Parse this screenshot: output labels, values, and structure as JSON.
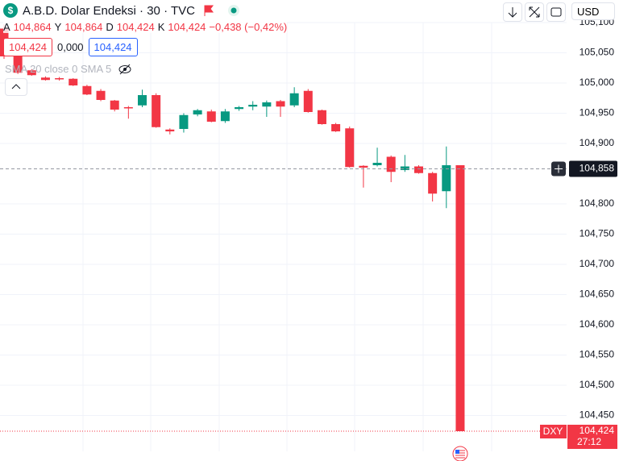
{
  "header": {
    "icon": "$",
    "title": "A.B.D. Dolar Endeksi · 30 · TVC",
    "ohlc": [
      {
        "key": "A",
        "value": "104,864"
      },
      {
        "key": "Y",
        "value": "104,864"
      },
      {
        "key": "D",
        "value": "104,424"
      },
      {
        "key": "K",
        "value": "104,424"
      }
    ],
    "change": "−0,438 (−0,42%)",
    "price_boxes": [
      "104,424",
      "0,000",
      "104,424"
    ],
    "indicator": "SMA 20 close 0 SMA 5"
  },
  "toolbar": {
    "currency": "USD"
  },
  "chart_data": {
    "type": "candlestick",
    "open": [
      105.09,
      105.044,
      105.021,
      105.009,
      105.008,
      105.007,
      104.995,
      104.987,
      104.971,
      104.96,
      104.963,
      104.98,
      104.923,
      104.924,
      104.948,
      104.953,
      104.937,
      104.957,
      104.961,
      104.961,
      104.97,
      104.963,
      104.987,
      104.955,
      104.932,
      104.925,
      104.863,
      104.864,
      104.878,
      104.856,
      104.862,
      104.851,
      104.821,
      104.864
    ],
    "high": [
      105.097,
      105.046,
      105.023,
      105.011,
      105.01,
      105.008,
      104.997,
      104.99,
      104.972,
      104.962,
      104.989,
      104.983,
      104.925,
      104.95,
      104.957,
      104.956,
      104.957,
      104.962,
      104.97,
      104.971,
      104.972,
      104.993,
      104.99,
      104.956,
      104.934,
      104.928,
      104.864,
      104.893,
      104.88,
      104.881,
      104.864,
      104.853,
      104.895,
      104.864
    ],
    "low": [
      105.04,
      105.015,
      105.012,
      105.004,
      105.004,
      104.995,
      104.98,
      104.97,
      104.953,
      104.941,
      104.96,
      104.926,
      104.915,
      104.918,
      104.945,
      104.935,
      104.934,
      104.954,
      104.955,
      104.944,
      104.944,
      104.96,
      104.951,
      104.931,
      104.919,
      104.86,
      104.827,
      104.862,
      104.836,
      104.853,
      104.85,
      104.804,
      104.793,
      104.424
    ],
    "close": [
      105.044,
      105.017,
      105.013,
      105.005,
      105.006,
      104.996,
      104.981,
      104.972,
      104.956,
      104.958,
      104.98,
      104.927,
      104.92,
      104.947,
      104.955,
      104.936,
      104.953,
      104.96,
      104.964,
      104.968,
      104.961,
      104.983,
      104.952,
      104.932,
      104.92,
      104.861,
      104.86,
      104.868,
      104.853,
      104.862,
      104.851,
      104.817,
      104.864,
      104.424
    ],
    "ylim": [
      104.4,
      105.1
    ],
    "yticks": [
      {
        "value": 104.45,
        "label": "104,450"
      },
      {
        "value": 104.5,
        "label": "104,500"
      },
      {
        "value": 104.55,
        "label": "104,550"
      },
      {
        "value": 104.6,
        "label": "104,600"
      },
      {
        "value": 104.65,
        "label": "104,650"
      },
      {
        "value": 104.7,
        "label": "104,700"
      },
      {
        "value": 104.75,
        "label": "104,750"
      },
      {
        "value": 104.8,
        "label": "104,800"
      },
      {
        "value": 104.9,
        "label": "104,900"
      },
      {
        "value": 104.95,
        "label": "104,950"
      },
      {
        "value": 105.0,
        "label": "105,000"
      },
      {
        "value": 105.05,
        "label": "105,050"
      },
      {
        "value": 105.1,
        "label": "105,100"
      }
    ],
    "grid": true,
    "up_color": "#089981",
    "down_color": "#f23645",
    "crosshair": {
      "value": 104.858,
      "label": "104,858"
    },
    "last_price": {
      "symbol": "DXY",
      "value": 104.424,
      "label": "104,424",
      "countdown": "27:12"
    }
  }
}
